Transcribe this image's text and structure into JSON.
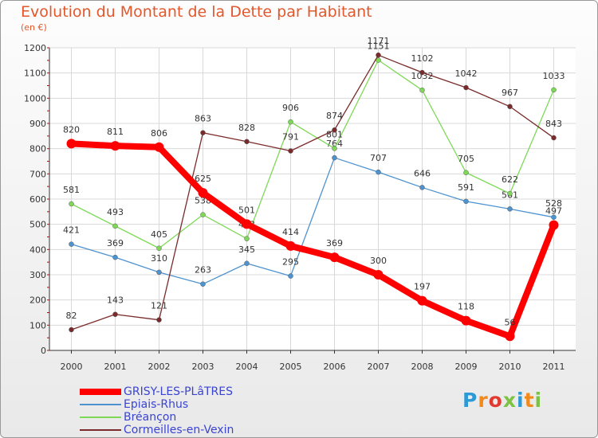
{
  "header": {
    "title": "Evolution du Montant de la Dette par Habitant",
    "unit": "(en €)"
  },
  "logo": {
    "text": "Proxiti"
  },
  "colors": {
    "title": "#e2572b",
    "legend_text": "#3a44d1",
    "logo": [
      "#2b9ad6",
      "#f08a1c",
      "#e23a2e",
      "#7cc243",
      "#2b9ad6",
      "#f08a1c",
      "#7cc243"
    ]
  },
  "chart_data": {
    "type": "line",
    "title": "Evolution du Montant de la Dette par Habitant",
    "ylabel": "(en €)",
    "xlabel": "",
    "x": [
      "2000",
      "2001",
      "2002",
      "2003",
      "2004",
      "2005",
      "2006",
      "2007",
      "2008",
      "2009",
      "2010",
      "2011"
    ],
    "ylim": [
      0,
      1200
    ],
    "yticks": [
      0,
      100,
      200,
      300,
      400,
      500,
      600,
      700,
      800,
      900,
      1000,
      1100,
      1200
    ],
    "grid": true,
    "legend": "bottom-left",
    "series": [
      {
        "name": "GRISY-LES-PLâTRES",
        "color": "#ff0000",
        "values": [
          820,
          811,
          806,
          625,
          501,
          414,
          369,
          300,
          197,
          118,
          56,
          497
        ]
      },
      {
        "name": "Epiais-Rhus",
        "color": "#4d93cf",
        "values": [
          421,
          369,
          310,
          263,
          345,
          295,
          764,
          707,
          646,
          591,
          561,
          528
        ]
      },
      {
        "name": "Bréançon",
        "color": "#7ed957",
        "values": [
          581,
          493,
          405,
          538,
          443,
          906,
          801,
          1151,
          1032,
          705,
          622,
          1033
        ]
      },
      {
        "name": "Cormeilles-en-Vexin",
        "color": "#7a2a2a",
        "values": [
          82,
          143,
          121,
          863,
          828,
          791,
          874,
          1171,
          1102,
          1042,
          967,
          843
        ]
      }
    ]
  }
}
